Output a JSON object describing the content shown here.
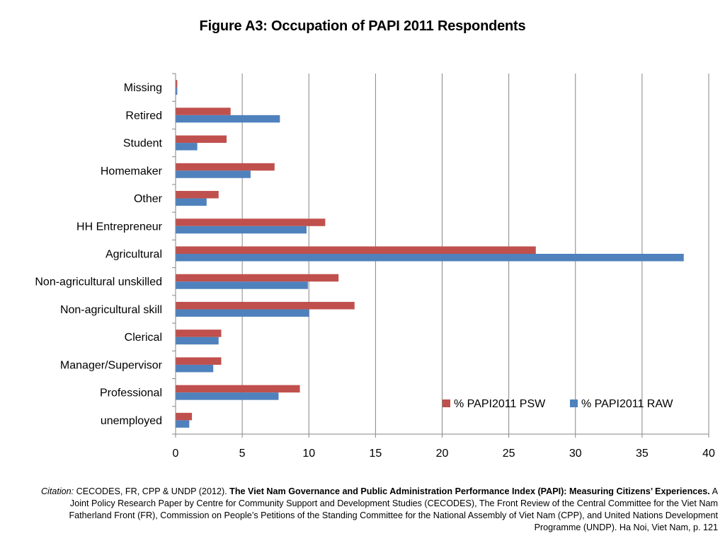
{
  "chart_data": {
    "type": "bar",
    "orientation": "horizontal",
    "title": "Figure A3: Occupation of PAPI 2011 Respondents",
    "categories": [
      "Missing",
      "Retired",
      "Student",
      "Homemaker",
      "Other",
      "HH Entrepreneur",
      "Agricultural",
      "Non-agricultural unskilled",
      "Non-agricultural skill",
      "Clerical",
      "Manager/Supervisor",
      "Professional",
      "unemployed"
    ],
    "series": [
      {
        "name": "% PAPI2011 PSW",
        "color": "#C0504D",
        "values": [
          0.1,
          4.1,
          3.8,
          7.4,
          3.2,
          11.2,
          27.0,
          12.2,
          13.4,
          3.4,
          3.4,
          9.3,
          1.2
        ]
      },
      {
        "name": "% PAPI2011 RAW",
        "color": "#4F81BD",
        "values": [
          0.1,
          7.8,
          1.6,
          5.6,
          2.3,
          9.8,
          38.1,
          9.9,
          10.0,
          3.2,
          2.8,
          7.7,
          1.0
        ]
      }
    ],
    "xlim": [
      0,
      40
    ],
    "xticks": [
      0,
      5,
      10,
      15,
      20,
      25,
      30,
      35,
      40
    ],
    "grid": "vertical",
    "legend": "bottom-right, inside plot"
  },
  "citation": {
    "label": "Citation:",
    "authors": "CECODES, FR, CPP & UNDP (2012).",
    "title": "The Viet Nam Governance and Public Administration Performance Index (PAPI): Measuring Citizens’ Experiences.",
    "rest": "A Joint Policy Research Paper by Centre for Community Support and Development Studies (CECODES), The Front Review of the Central Committee for the Viet Nam Fatherland Front (FR), Commission on People’s Petitions of the Standing Committee for the National Assembly of Viet Nam (CPP), and United Nations Development Programme (UNDP). Ha Noi, Viet Nam, p. 121"
  }
}
